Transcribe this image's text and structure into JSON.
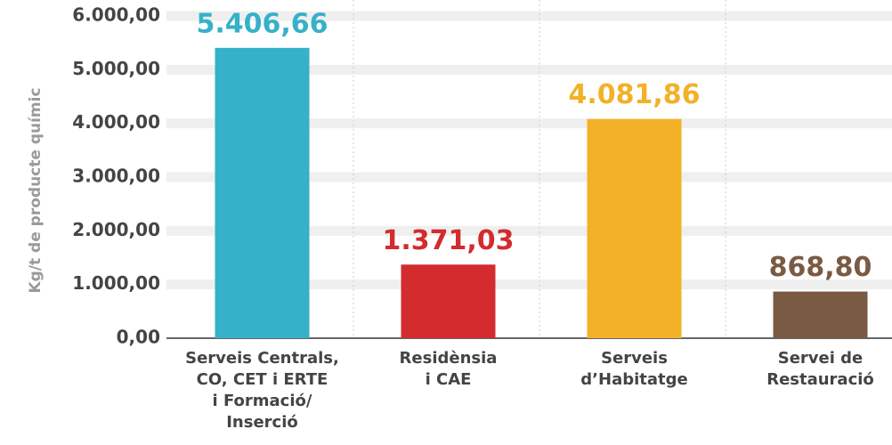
{
  "chart_data": {
    "type": "bar",
    "y_label": "Kg/t de producte químic",
    "categories": [
      [
        "Serveis Centrals,",
        "CO, CET i ERTE",
        "i Formació/",
        "Inserció"
      ],
      [
        "Residènsia",
        "i CAE"
      ],
      [
        "Serveis",
        "d’Habitatge"
      ],
      [
        "Servei de",
        "Restauració"
      ]
    ],
    "values": [
      5406.66,
      1371.03,
      4081.86,
      868.8
    ],
    "value_labels": [
      "5.406,66",
      "1.371,03",
      "4.081,86",
      "868,80"
    ],
    "colors": [
      "#35b1c9",
      "#d32b2e",
      "#f2b127",
      "#7a5a43"
    ],
    "ylim": [
      0,
      6000
    ],
    "yticks": [
      {
        "value": 0,
        "label": "0,00"
      },
      {
        "value": 1000,
        "label": "1.000,00"
      },
      {
        "value": 2000,
        "label": "2.000,00"
      },
      {
        "value": 3000,
        "label": "3.000,00"
      },
      {
        "value": 4000,
        "label": "4.000,00"
      },
      {
        "value": 5000,
        "label": "5.000,00"
      },
      {
        "value": 6000,
        "label": "6.000,00"
      }
    ],
    "grid": true
  }
}
